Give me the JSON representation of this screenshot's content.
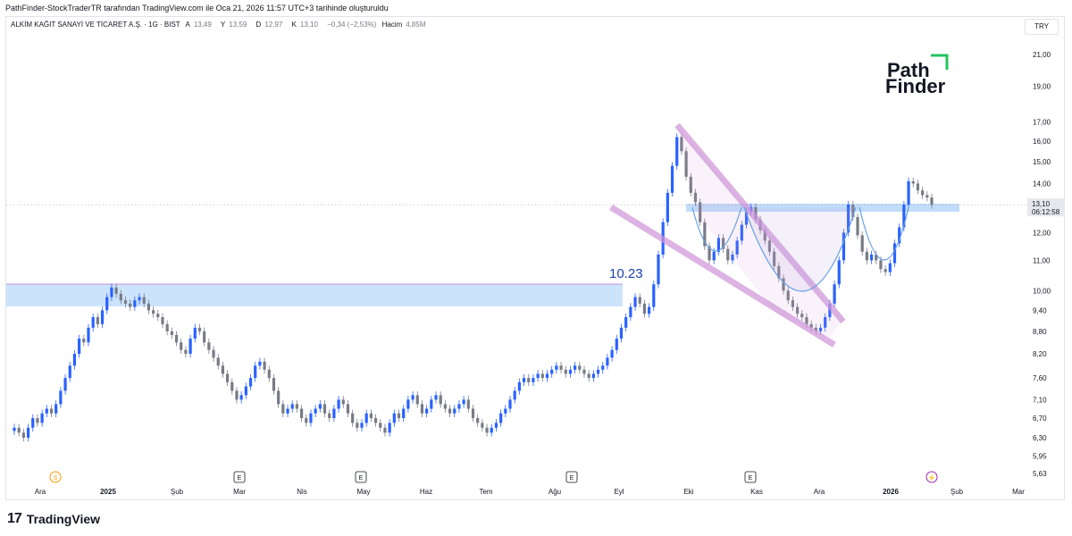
{
  "header": {
    "attribution": "PathFinder-StockTraderTR tarafından TradingView.com ile Oca 21, 2026 11:57 UTC+3 tarihinde oluşturuldu"
  },
  "symbol": {
    "name": "ALKİM KAĞIT SANAYİ VE TİCARET A.Ş. · 1G · BIST",
    "open_label": "A",
    "open": "13,49",
    "high_label": "Y",
    "high": "13,59",
    "low_label": "D",
    "low": "12,97",
    "close_label": "K",
    "close": "13,10",
    "change": "−0,34 (−2,53%)",
    "volume_label": "Hacim",
    "volume": "4,85M"
  },
  "currency": "TRY",
  "logo": {
    "line1": "Path",
    "line2": "Finder"
  },
  "footer": {
    "brand": "TradingView"
  },
  "colors": {
    "up": "#2962ff",
    "down": "#787b86",
    "zone": "#bbd9fb",
    "wedge": "#ce93d8"
  },
  "chart_data": {
    "type": "candlestick",
    "price_axis_ticks": [
      "21,00",
      "19,00",
      "17,00",
      "16,00",
      "15,00",
      "14,00",
      "12,00",
      "11,00",
      "10,00",
      "9,40",
      "8,80",
      "8,20",
      "7,60",
      "7,10",
      "6,70",
      "6,30",
      "5,95",
      "5,63"
    ],
    "price_axis_values": [
      21.0,
      19.0,
      17.0,
      16.0,
      15.0,
      14.0,
      12.0,
      11.0,
      10.0,
      9.4,
      8.8,
      8.2,
      7.6,
      7.1,
      6.7,
      6.3,
      5.95,
      5.63
    ],
    "price_axis_scale": "log",
    "time_axis_ticks": [
      "Ara",
      "2025",
      "Şub",
      "Mar",
      "Nis",
      "May",
      "Haz",
      "Tem",
      "Ağu",
      "Eyl",
      "Eki",
      "Kas",
      "Ara",
      "2026",
      "Şub",
      "Mar"
    ],
    "last_price": "13,10",
    "countdown": "06:12:58",
    "resistance_label": "10.23",
    "event_markers": [
      "S",
      "E",
      "E",
      "E",
      "E",
      "⚡"
    ],
    "closes": [
      6.5,
      6.4,
      6.3,
      6.5,
      6.7,
      6.6,
      6.8,
      6.9,
      6.8,
      7.0,
      7.3,
      7.6,
      7.9,
      8.2,
      8.6,
      8.5,
      8.9,
      9.2,
      9.0,
      9.4,
      9.8,
      10.1,
      9.9,
      9.7,
      9.6,
      9.5,
      9.7,
      9.8,
      9.6,
      9.4,
      9.3,
      9.2,
      9.0,
      8.8,
      8.7,
      8.5,
      8.3,
      8.2,
      8.6,
      8.9,
      8.8,
      8.5,
      8.3,
      8.1,
      7.9,
      7.7,
      7.5,
      7.3,
      7.1,
      7.2,
      7.4,
      7.6,
      7.9,
      8.0,
      7.8,
      7.6,
      7.3,
      7.0,
      6.8,
      6.9,
      7.0,
      6.9,
      6.7,
      6.6,
      6.8,
      6.9,
      7.0,
      6.8,
      6.7,
      6.9,
      7.1,
      7.0,
      6.8,
      6.6,
      6.5,
      6.6,
      6.8,
      6.7,
      6.6,
      6.5,
      6.4,
      6.6,
      6.8,
      6.7,
      6.9,
      7.1,
      7.2,
      7.0,
      6.8,
      6.9,
      7.1,
      7.2,
      7.0,
      6.9,
      6.8,
      6.9,
      7.0,
      7.1,
      6.9,
      6.7,
      6.6,
      6.5,
      6.4,
      6.5,
      6.6,
      6.8,
      6.9,
      7.1,
      7.3,
      7.5,
      7.6,
      7.5,
      7.6,
      7.7,
      7.6,
      7.7,
      7.8,
      7.9,
      7.8,
      7.7,
      7.8,
      7.9,
      7.8,
      7.7,
      7.6,
      7.7,
      7.8,
      7.9,
      8.1,
      8.3,
      8.6,
      8.9,
      9.2,
      9.5,
      9.8,
      9.6,
      9.3,
      9.5,
      10.2,
      11.2,
      12.4,
      13.6,
      14.8,
      16.2,
      15.5,
      14.3,
      13.6,
      13.2,
      12.4,
      11.5,
      11.0,
      11.3,
      11.8,
      11.4,
      11.0,
      11.2,
      11.7,
      12.3,
      12.8,
      13.0,
      12.5,
      12.1,
      11.7,
      11.3,
      10.8,
      10.4,
      10.0,
      9.7,
      9.5,
      9.3,
      9.2,
      9.0,
      8.9,
      8.8,
      8.9,
      9.2,
      9.6,
      10.2,
      11.0,
      12.0,
      13.1,
      12.6,
      11.9,
      11.3,
      11.0,
      11.2,
      11.0,
      10.7,
      10.6,
      10.9,
      11.6,
      12.2,
      13.1,
      14.1,
      14.0,
      13.7,
      13.5,
      13.4,
      13.1
    ]
  }
}
